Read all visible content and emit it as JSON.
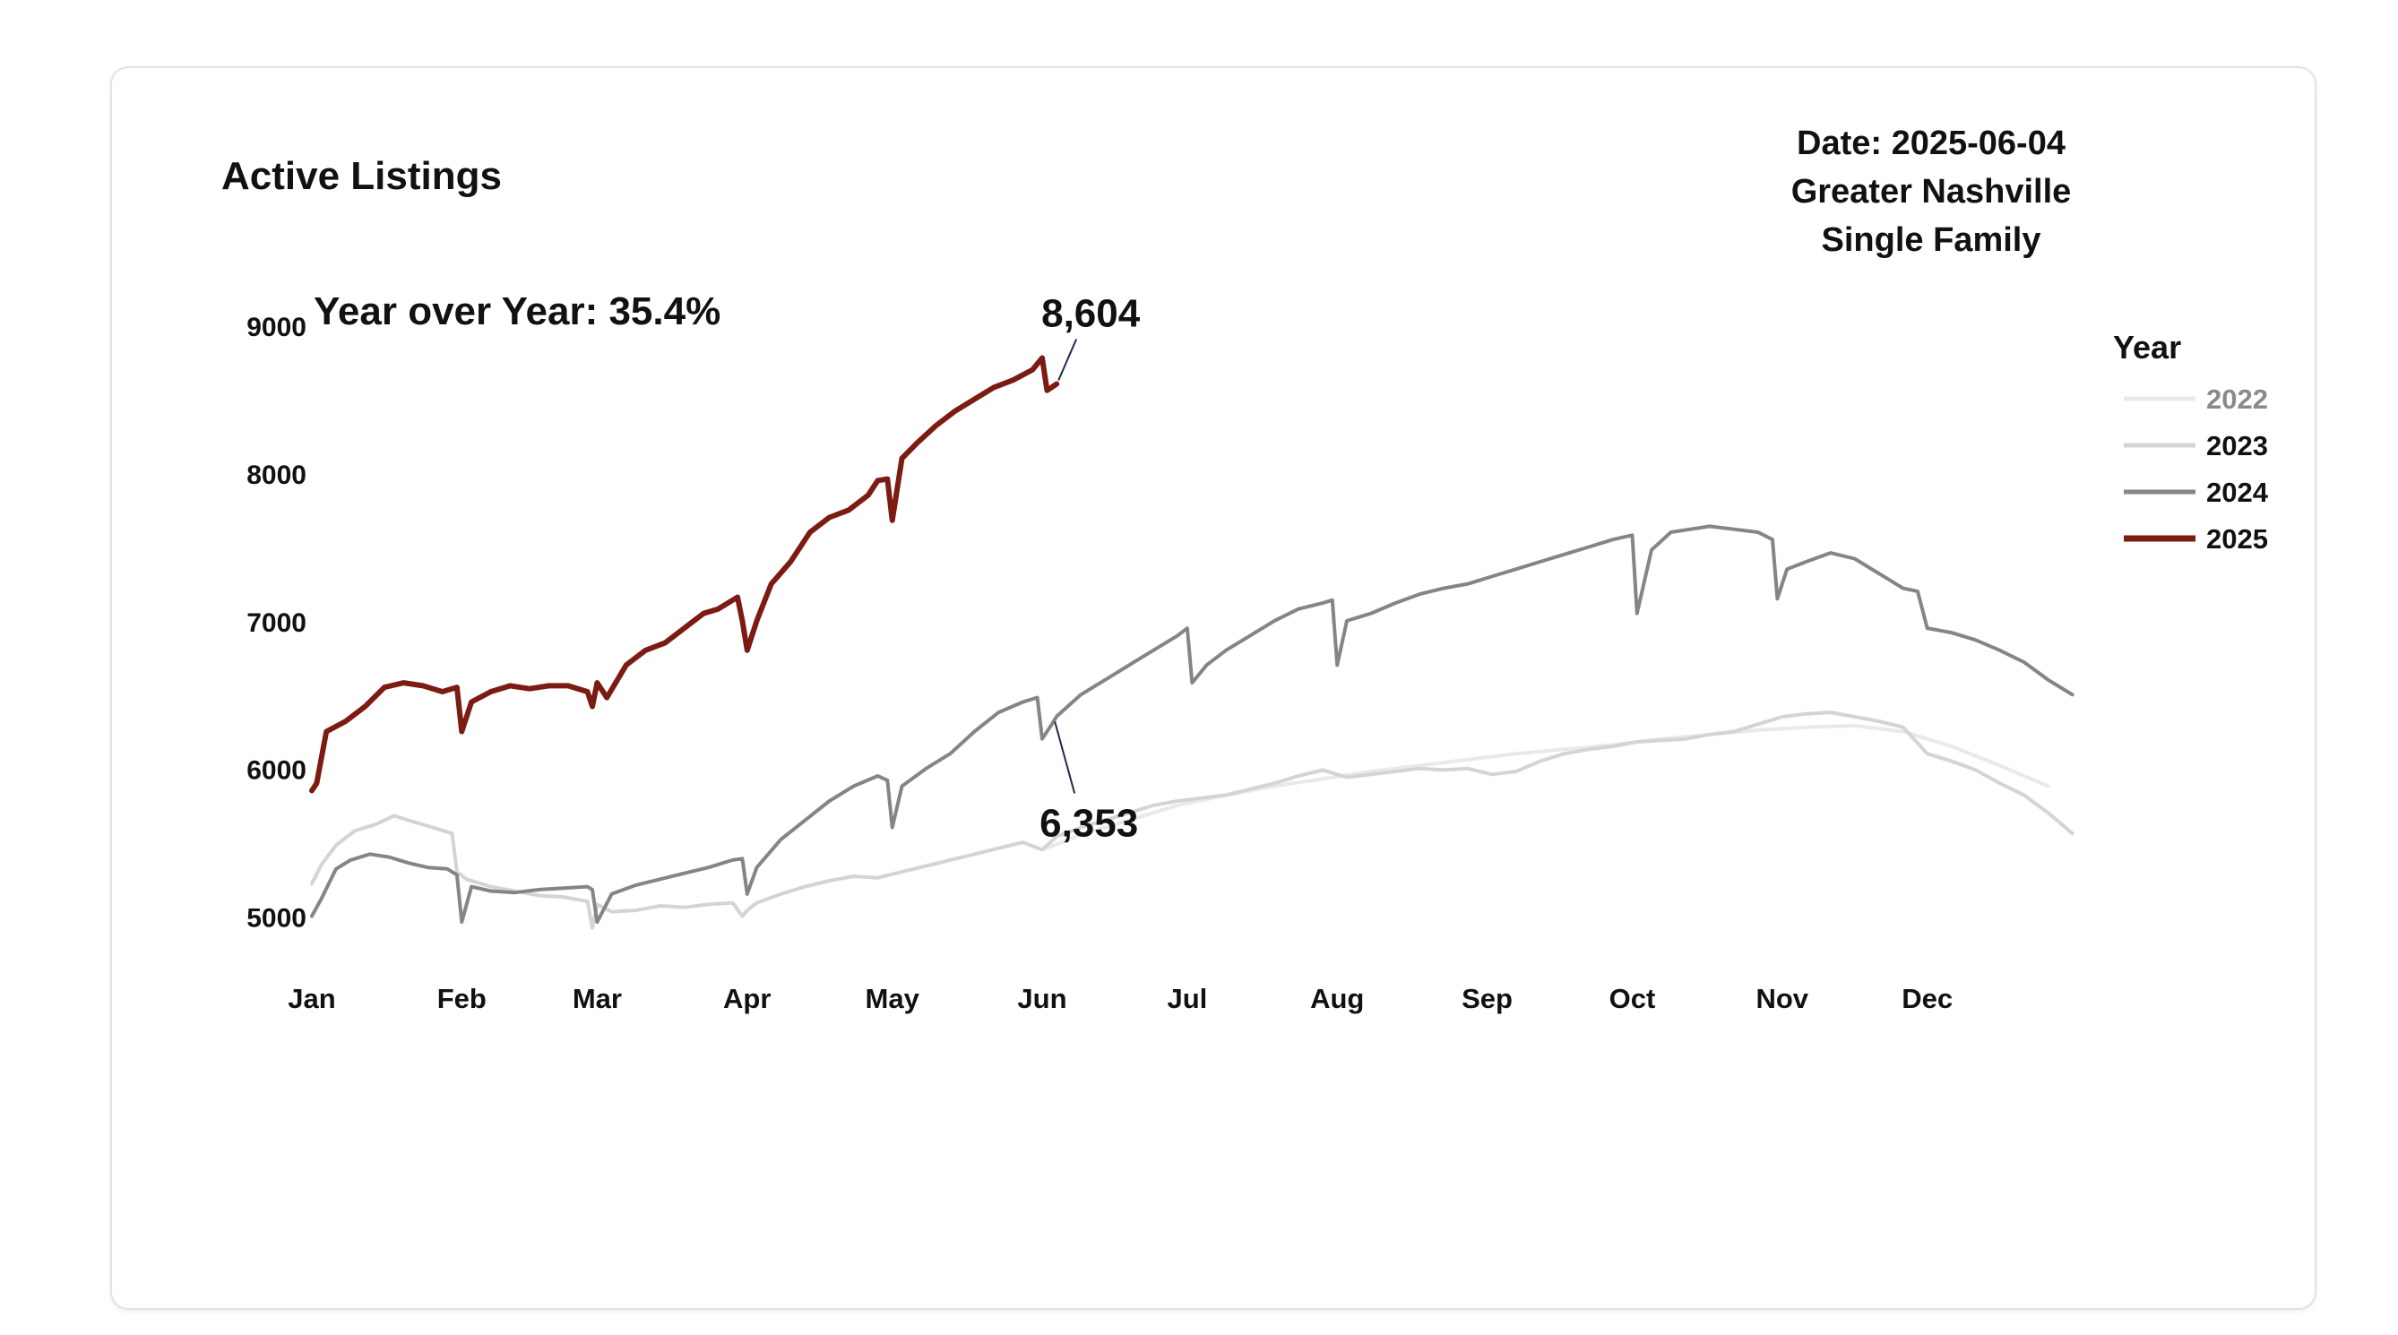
{
  "chart_data": {
    "type": "line",
    "title": "Active Listings",
    "header_lines": [
      "Date: 2025-06-04",
      "Greater Nashville",
      "Single Family"
    ],
    "subtitle": "Year over Year: 35.4%",
    "legend_title": "Year",
    "legend_position": "right",
    "grid": false,
    "x_unit": "day of year",
    "xlim": [
      1,
      366
    ],
    "ylim": [
      4700,
      9250
    ],
    "y_ticks": [
      5000,
      6000,
      7000,
      8000,
      9000
    ],
    "x_ticks": [
      {
        "day": 1,
        "label": "Jan"
      },
      {
        "day": 32,
        "label": "Feb"
      },
      {
        "day": 60,
        "label": "Mar"
      },
      {
        "day": 91,
        "label": "Apr"
      },
      {
        "day": 121,
        "label": "May"
      },
      {
        "day": 152,
        "label": "Jun"
      },
      {
        "day": 182,
        "label": "Jul"
      },
      {
        "day": 213,
        "label": "Aug"
      },
      {
        "day": 244,
        "label": "Sep"
      },
      {
        "day": 274,
        "label": "Oct"
      },
      {
        "day": 305,
        "label": "Nov"
      },
      {
        "day": 335,
        "label": "Dec"
      }
    ],
    "annotations": [
      {
        "text": "8,604",
        "series": "2025",
        "day": 155,
        "value": 8604
      },
      {
        "text": "6,353",
        "series": "2024",
        "day": 155,
        "value": 6353
      }
    ],
    "series": [
      {
        "name": "2022",
        "color": "#e9e9e9",
        "width": 4,
        "legend_color": "#8a8a8a",
        "x": [
          152,
          160,
          170,
          180,
          190,
          200,
          210,
          220,
          230,
          240,
          250,
          260,
          270,
          280,
          290,
          300,
          310,
          320,
          330,
          340,
          350,
          360
        ],
        "y": [
          5450,
          5550,
          5650,
          5750,
          5820,
          5880,
          5930,
          5980,
          6020,
          6060,
          6100,
          6130,
          6160,
          6200,
          6230,
          6260,
          6280,
          6290,
          6250,
          6150,
          6020,
          5880
        ]
      },
      {
        "name": "2023",
        "color": "#d4d4d4",
        "width": 4,
        "legend_color": "#111111",
        "x": [
          1,
          3,
          6,
          10,
          14,
          18,
          22,
          26,
          30,
          31,
          33,
          38,
          43,
          48,
          53,
          58,
          59,
          60,
          63,
          68,
          73,
          78,
          83,
          88,
          90,
          91,
          93,
          98,
          103,
          108,
          113,
          118,
          123,
          128,
          133,
          138,
          143,
          148,
          152,
          155,
          160,
          165,
          170,
          175,
          180,
          185,
          190,
          195,
          200,
          205,
          210,
          215,
          220,
          225,
          230,
          235,
          240,
          245,
          250,
          255,
          260,
          265,
          270,
          275,
          280,
          285,
          290,
          295,
          300,
          305,
          310,
          315,
          320,
          325,
          330,
          335,
          340,
          345,
          350,
          355,
          360,
          365
        ],
        "y": [
          5220,
          5350,
          5480,
          5580,
          5620,
          5680,
          5640,
          5600,
          5560,
          5300,
          5250,
          5200,
          5170,
          5140,
          5130,
          5100,
          4920,
          5080,
          5030,
          5040,
          5070,
          5060,
          5080,
          5090,
          5000,
          5040,
          5090,
          5150,
          5200,
          5240,
          5270,
          5260,
          5300,
          5340,
          5380,
          5420,
          5460,
          5500,
          5450,
          5540,
          5600,
          5650,
          5700,
          5750,
          5780,
          5800,
          5820,
          5860,
          5900,
          5950,
          5990,
          5940,
          5960,
          5980,
          6000,
          5990,
          6000,
          5960,
          5980,
          6050,
          6100,
          6130,
          6150,
          6180,
          6190,
          6200,
          6230,
          6250,
          6300,
          6350,
          6370,
          6380,
          6350,
          6320,
          6280,
          6100,
          6050,
          5990,
          5900,
          5820,
          5700,
          5560
        ]
      },
      {
        "name": "2024",
        "color": "#858585",
        "width": 4,
        "legend_color": "#111111",
        "x": [
          1,
          3,
          6,
          9,
          13,
          17,
          21,
          25,
          29,
          31,
          32,
          34,
          38,
          43,
          48,
          53,
          58,
          59,
          60,
          63,
          68,
          73,
          78,
          83,
          88,
          90,
          91,
          93,
          98,
          103,
          108,
          113,
          118,
          120,
          121,
          123,
          128,
          133,
          138,
          143,
          148,
          151,
          152,
          154,
          155,
          160,
          165,
          170,
          175,
          180,
          182,
          183,
          186,
          190,
          195,
          200,
          205,
          210,
          212,
          213,
          215,
          220,
          225,
          230,
          235,
          240,
          245,
          250,
          255,
          260,
          265,
          270,
          274,
          275,
          278,
          282,
          286,
          290,
          295,
          300,
          303,
          304,
          306,
          310,
          315,
          320,
          325,
          330,
          333,
          335,
          340,
          345,
          350,
          355,
          360,
          365
        ],
        "y": [
          5000,
          5120,
          5320,
          5380,
          5420,
          5400,
          5360,
          5330,
          5320,
          5280,
          4960,
          5200,
          5170,
          5160,
          5180,
          5190,
          5200,
          5180,
          4960,
          5150,
          5210,
          5250,
          5290,
          5330,
          5380,
          5390,
          5150,
          5330,
          5520,
          5650,
          5780,
          5880,
          5950,
          5920,
          5600,
          5880,
          6000,
          6100,
          6250,
          6380,
          6450,
          6480,
          6200,
          6300,
          6353,
          6500,
          6600,
          6700,
          6800,
          6900,
          6950,
          6580,
          6700,
          6800,
          6900,
          7000,
          7080,
          7120,
          7140,
          6700,
          7000,
          7050,
          7120,
          7180,
          7220,
          7250,
          7300,
          7350,
          7400,
          7450,
          7500,
          7550,
          7580,
          7050,
          7480,
          7600,
          7620,
          7640,
          7620,
          7600,
          7550,
          7150,
          7350,
          7400,
          7460,
          7420,
          7320,
          7220,
          7200,
          6950,
          6920,
          6870,
          6800,
          6720,
          6600,
          6500
        ]
      },
      {
        "name": "2025",
        "color": "#7c1b12",
        "width": 6,
        "legend_color": "#111111",
        "x": [
          1,
          2,
          4,
          8,
          12,
          16,
          20,
          24,
          28,
          31,
          32,
          34,
          38,
          42,
          46,
          50,
          54,
          58,
          59,
          60,
          62,
          66,
          70,
          74,
          78,
          82,
          85,
          89,
          90,
          91,
          93,
          96,
          100,
          104,
          108,
          112,
          116,
          118,
          120,
          121,
          123,
          126,
          130,
          134,
          138,
          142,
          146,
          150,
          152,
          153,
          155
        ],
        "y": [
          5850,
          5900,
          6250,
          6320,
          6420,
          6550,
          6580,
          6560,
          6520,
          6550,
          6250,
          6450,
          6520,
          6560,
          6540,
          6560,
          6560,
          6520,
          6420,
          6580,
          6480,
          6700,
          6800,
          6850,
          6950,
          7050,
          7080,
          7160,
          7000,
          6800,
          7000,
          7250,
          7400,
          7600,
          7700,
          7750,
          7850,
          7950,
          7960,
          7680,
          8100,
          8200,
          8320,
          8420,
          8500,
          8580,
          8630,
          8700,
          8780,
          8560,
          8604
        ]
      }
    ]
  }
}
